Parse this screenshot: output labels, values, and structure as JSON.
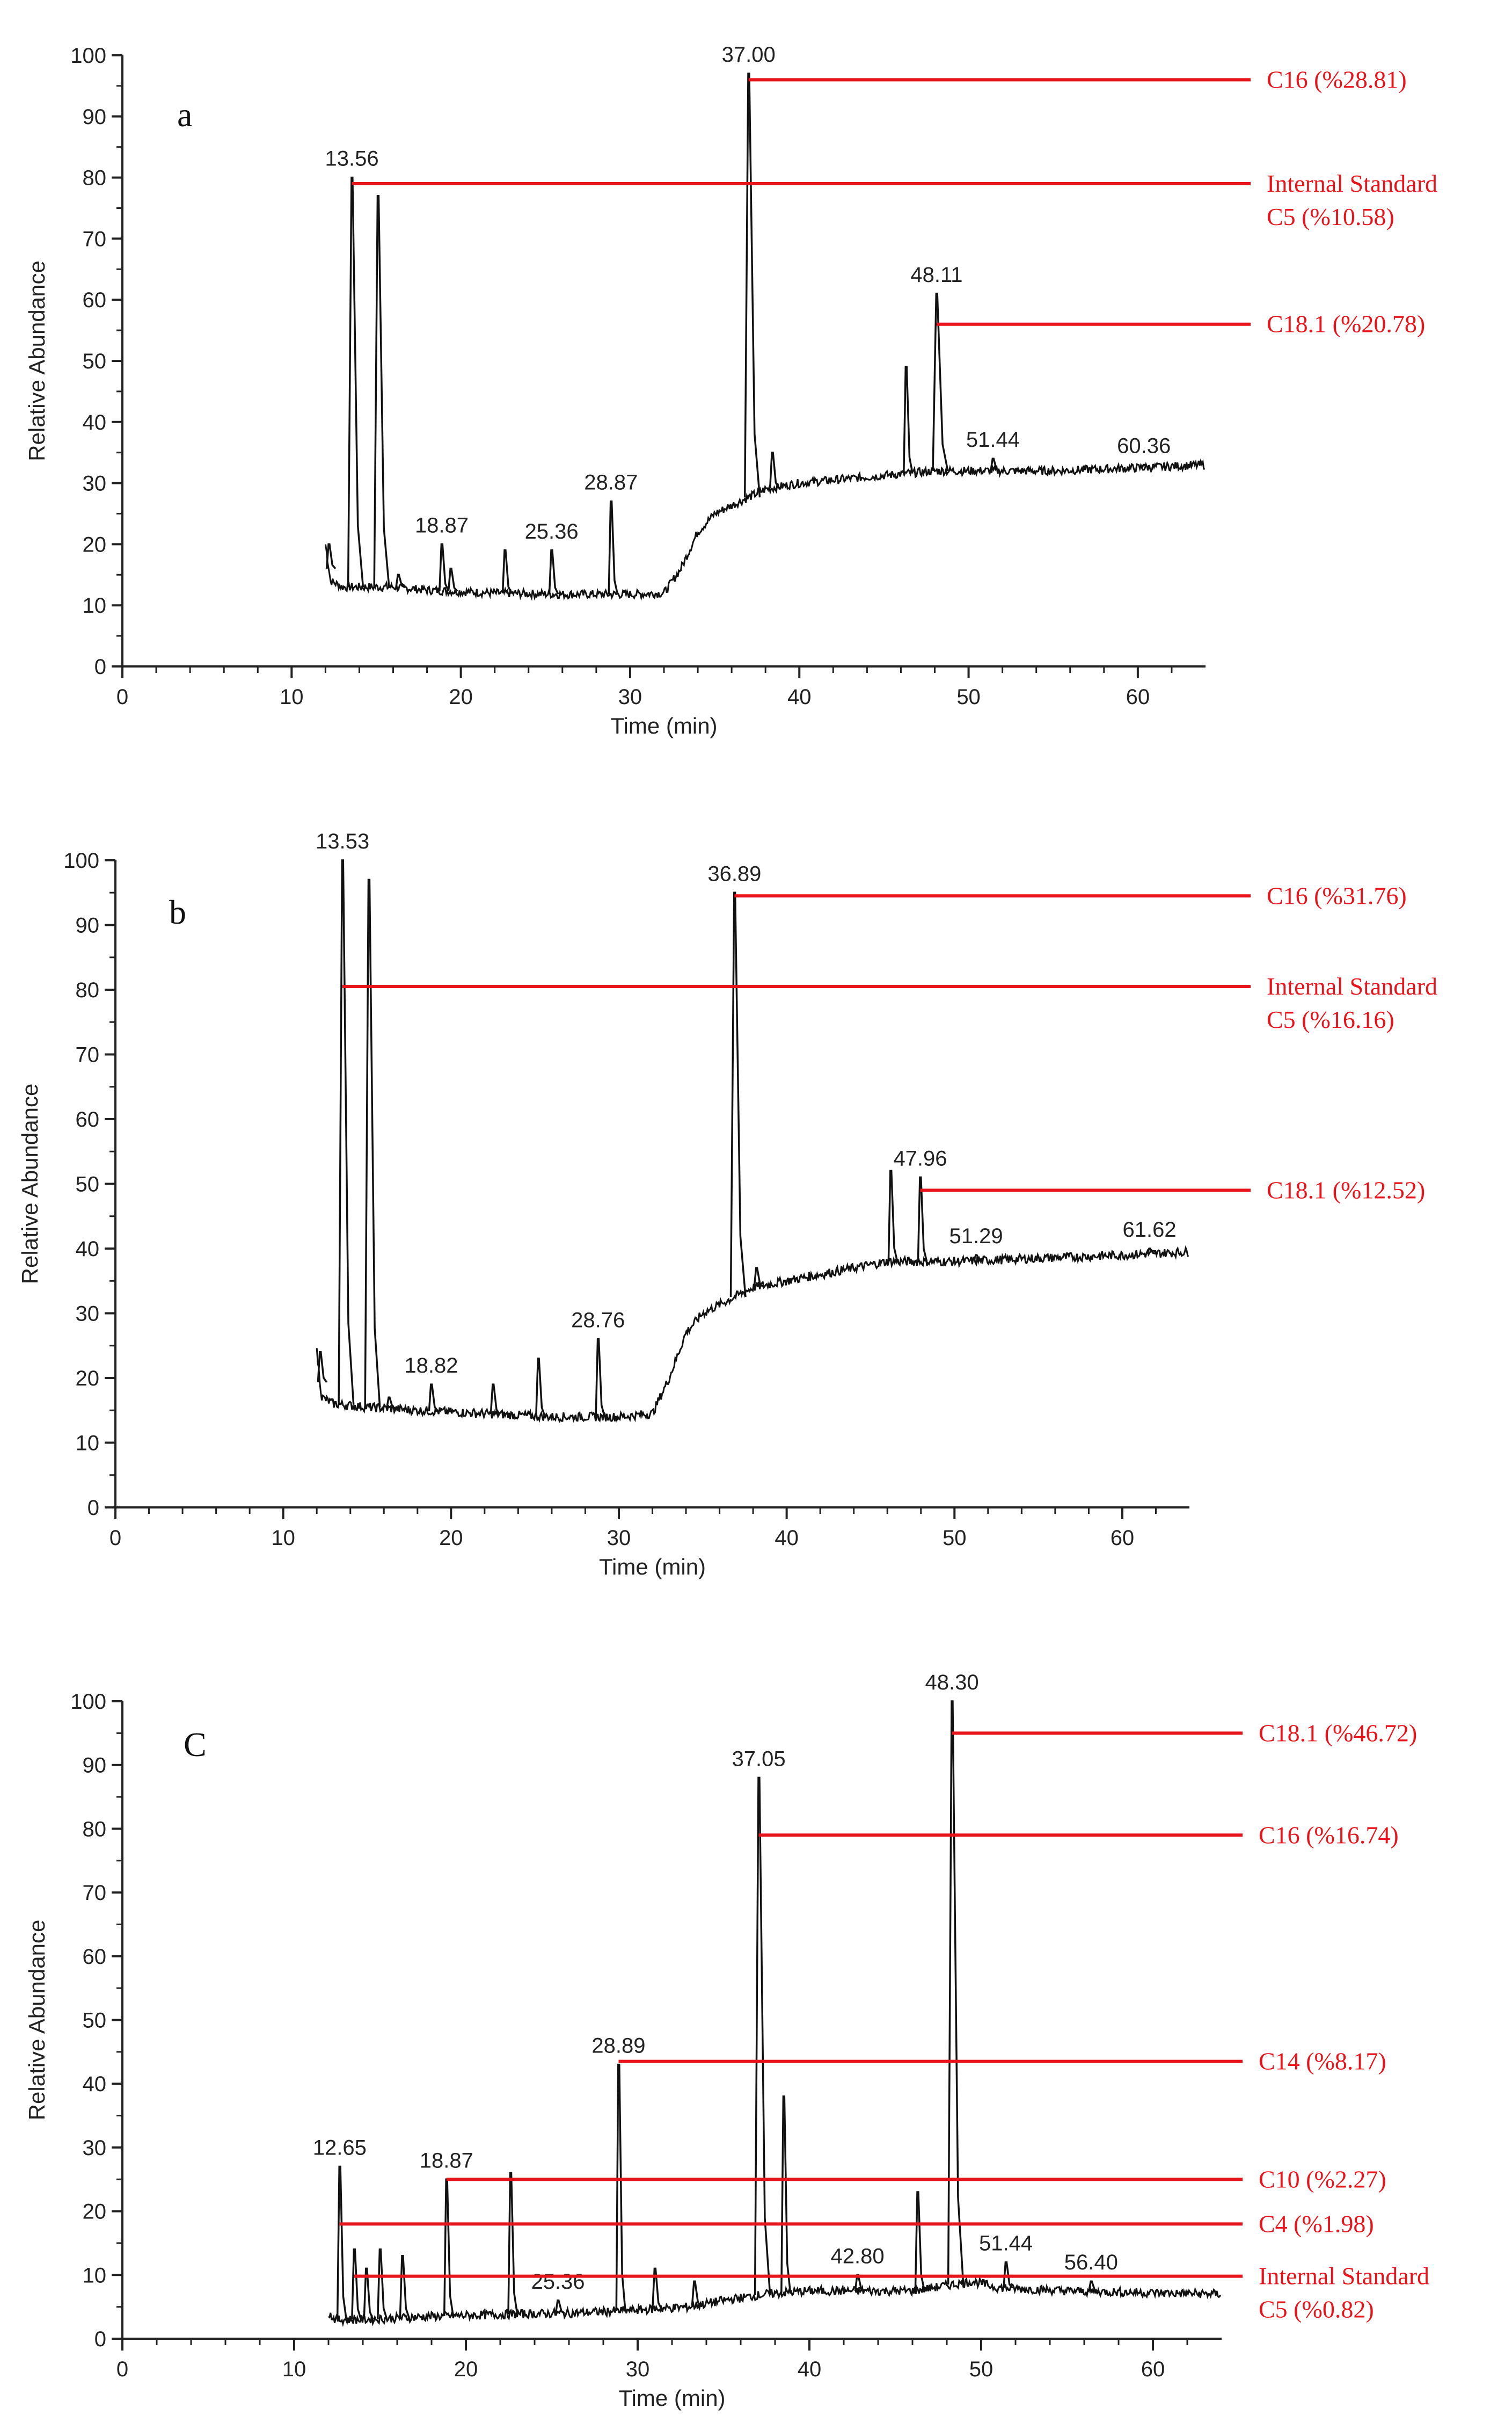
{
  "chart_data": [
    {
      "type": "line",
      "panel_label": "a",
      "xlabel": "Time (min)",
      "ylabel": "Relative Abundance",
      "xlim": [
        0,
        64
      ],
      "ylim": [
        0,
        100
      ],
      "xticks": [
        0,
        10,
        20,
        30,
        40,
        50,
        60
      ],
      "yticks": [
        0,
        10,
        20,
        30,
        40,
        50,
        60,
        70,
        80,
        90,
        100
      ],
      "baseline": [
        [
          12.0,
          20
        ],
        [
          12.3,
          14
        ],
        [
          13.0,
          13
        ],
        [
          14.5,
          13
        ],
        [
          16.0,
          13
        ],
        [
          18.0,
          12.5
        ],
        [
          22.0,
          12
        ],
        [
          26.0,
          11.8
        ],
        [
          30.0,
          11.8
        ],
        [
          32.0,
          12
        ],
        [
          33.0,
          16
        ],
        [
          34.0,
          22
        ],
        [
          35.0,
          25
        ],
        [
          36.5,
          27
        ],
        [
          38.0,
          29
        ],
        [
          40.0,
          30
        ],
        [
          44.0,
          31
        ],
        [
          46.0,
          31.5
        ],
        [
          48.0,
          32
        ],
        [
          50.0,
          32
        ],
        [
          55.0,
          32
        ],
        [
          60.0,
          32.5
        ],
        [
          64.0,
          33
        ]
      ],
      "peaks": [
        {
          "x": 12.2,
          "y": 20
        },
        {
          "x": 13.56,
          "y": 80
        },
        {
          "x": 15.1,
          "y": 77
        },
        {
          "x": 16.3,
          "y": 15
        },
        {
          "x": 18.87,
          "y": 20
        },
        {
          "x": 19.4,
          "y": 16
        },
        {
          "x": 22.6,
          "y": 19
        },
        {
          "x": 25.36,
          "y": 19
        },
        {
          "x": 28.87,
          "y": 27
        },
        {
          "x": 37.0,
          "y": 97
        },
        {
          "x": 38.4,
          "y": 35
        },
        {
          "x": 46.3,
          "y": 49
        },
        {
          "x": 48.11,
          "y": 61
        },
        {
          "x": 51.44,
          "y": 34
        },
        {
          "x": 60.36,
          "y": 33
        }
      ],
      "peak_labels": [
        {
          "x": 13.56,
          "y": 80,
          "text": "13.56"
        },
        {
          "x": 18.87,
          "y": 20,
          "text": "18.87"
        },
        {
          "x": 25.36,
          "y": 19,
          "text": "25.36"
        },
        {
          "x": 28.87,
          "y": 27,
          "text": "28.87"
        },
        {
          "x": 37.0,
          "y": 97,
          "text": "37.00"
        },
        {
          "x": 48.11,
          "y": 61,
          "text": "48.11"
        },
        {
          "x": 51.44,
          "y": 34,
          "text": "51.44"
        },
        {
          "x": 60.36,
          "y": 33,
          "text": "60.36"
        }
      ],
      "annotations": [
        {
          "x_start": 37.0,
          "y": 96,
          "lines": [
            "C16 (%28.81)"
          ]
        },
        {
          "x_start": 13.56,
          "y": 79,
          "lines": [
            "Internal Standard",
            "C5 (%10.58)"
          ]
        },
        {
          "x_start": 48.11,
          "y": 56,
          "lines": [
            "C18.1 (%20.78)"
          ]
        }
      ],
      "annotation_color": "#e8141c",
      "trace_color": "#111111"
    },
    {
      "type": "line",
      "panel_label": "b",
      "xlabel": "Time (min)",
      "ylabel": "Relative Abundance",
      "xlim": [
        0,
        64
      ],
      "ylim": [
        0,
        100
      ],
      "xticks": [
        0,
        10,
        20,
        30,
        40,
        50,
        60
      ],
      "yticks": [
        0,
        10,
        20,
        30,
        40,
        50,
        60,
        70,
        80,
        90,
        100
      ],
      "baseline": [
        [
          12.0,
          24
        ],
        [
          12.3,
          17
        ],
        [
          13.0,
          16
        ],
        [
          15.0,
          15.5
        ],
        [
          18.0,
          15
        ],
        [
          22.0,
          14.5
        ],
        [
          26.0,
          14
        ],
        [
          30.0,
          14
        ],
        [
          32.0,
          14.5
        ],
        [
          33.0,
          20
        ],
        [
          34.0,
          27
        ],
        [
          35.0,
          30
        ],
        [
          36.5,
          32
        ],
        [
          38.0,
          34
        ],
        [
          40.0,
          35
        ],
        [
          44.0,
          37
        ],
        [
          46.0,
          38
        ],
        [
          48.0,
          38
        ],
        [
          50.0,
          38
        ],
        [
          55.0,
          38.5
        ],
        [
          60.0,
          39
        ],
        [
          64.0,
          39.5
        ]
      ],
      "peaks": [
        {
          "x": 12.2,
          "y": 24
        },
        {
          "x": 13.53,
          "y": 100
        },
        {
          "x": 15.1,
          "y": 97
        },
        {
          "x": 16.3,
          "y": 17
        },
        {
          "x": 18.82,
          "y": 19
        },
        {
          "x": 22.5,
          "y": 19
        },
        {
          "x": 25.2,
          "y": 23
        },
        {
          "x": 28.76,
          "y": 26
        },
        {
          "x": 36.89,
          "y": 95
        },
        {
          "x": 38.2,
          "y": 37
        },
        {
          "x": 46.2,
          "y": 52
        },
        {
          "x": 47.96,
          "y": 51
        },
        {
          "x": 51.29,
          "y": 39
        },
        {
          "x": 61.62,
          "y": 40
        }
      ],
      "peak_labels": [
        {
          "x": 13.53,
          "y": 100,
          "text": "13.53"
        },
        {
          "x": 18.82,
          "y": 19,
          "text": "18.82"
        },
        {
          "x": 28.76,
          "y": 26,
          "text": "28.76"
        },
        {
          "x": 36.89,
          "y": 95,
          "text": "36.89"
        },
        {
          "x": 47.96,
          "y": 51,
          "text": "47.96"
        },
        {
          "x": 51.29,
          "y": 39,
          "text": "51.29"
        },
        {
          "x": 61.62,
          "y": 40,
          "text": "61.62"
        }
      ],
      "annotations": [
        {
          "x_start": 36.89,
          "y": 94.5,
          "lines": [
            "C16 (%31.76)"
          ]
        },
        {
          "x_start": 13.53,
          "y": 80.5,
          "lines": [
            "Internal Standard",
            "C5 (%16.16)"
          ]
        },
        {
          "x_start": 47.96,
          "y": 49,
          "lines": [
            "C18.1 (%12.52)"
          ]
        }
      ],
      "annotation_color": "#e8141c",
      "trace_color": "#111111"
    },
    {
      "type": "line",
      "panel_label": "C",
      "xlabel": "Time (min)",
      "ylabel": "Relative Abundance",
      "xlim": [
        0,
        64
      ],
      "ylim": [
        0,
        100
      ],
      "xticks": [
        0,
        10,
        20,
        30,
        40,
        50,
        60
      ],
      "yticks": [
        0,
        10,
        20,
        30,
        40,
        50,
        60,
        70,
        80,
        90,
        100
      ],
      "baseline": [
        [
          12.0,
          4
        ],
        [
          12.4,
          3
        ],
        [
          14.0,
          3
        ],
        [
          18.0,
          3.5
        ],
        [
          22.0,
          3.8
        ],
        [
          26.0,
          4
        ],
        [
          30.0,
          4.5
        ],
        [
          33.0,
          5
        ],
        [
          35.0,
          6
        ],
        [
          37.5,
          7
        ],
        [
          40.0,
          7.5
        ],
        [
          44.0,
          7.5
        ],
        [
          46.0,
          7.5
        ],
        [
          49.5,
          9
        ],
        [
          51.0,
          8
        ],
        [
          55.0,
          7.5
        ],
        [
          60.0,
          7.2
        ],
        [
          64.0,
          7
        ]
      ],
      "peaks": [
        {
          "x": 12.65,
          "y": 27
        },
        {
          "x": 13.5,
          "y": 14
        },
        {
          "x": 14.2,
          "y": 11
        },
        {
          "x": 15.0,
          "y": 14
        },
        {
          "x": 16.3,
          "y": 13
        },
        {
          "x": 18.87,
          "y": 25
        },
        {
          "x": 22.6,
          "y": 26
        },
        {
          "x": 25.36,
          "y": 6
        },
        {
          "x": 28.89,
          "y": 43
        },
        {
          "x": 31.0,
          "y": 11
        },
        {
          "x": 33.3,
          "y": 9
        },
        {
          "x": 37.05,
          "y": 88
        },
        {
          "x": 38.5,
          "y": 38
        },
        {
          "x": 42.8,
          "y": 10
        },
        {
          "x": 46.3,
          "y": 23
        },
        {
          "x": 48.3,
          "y": 100
        },
        {
          "x": 51.44,
          "y": 12
        },
        {
          "x": 56.4,
          "y": 9
        }
      ],
      "peak_labels": [
        {
          "x": 12.65,
          "y": 27,
          "text": "12.65"
        },
        {
          "x": 18.87,
          "y": 25,
          "text": "18.87"
        },
        {
          "x": 25.36,
          "y": 6,
          "text": "25.36"
        },
        {
          "x": 28.89,
          "y": 43,
          "text": "28.89"
        },
        {
          "x": 37.05,
          "y": 88,
          "text": "37.05"
        },
        {
          "x": 42.8,
          "y": 10,
          "text": "42.80"
        },
        {
          "x": 48.3,
          "y": 100,
          "text": "48.30"
        },
        {
          "x": 51.44,
          "y": 12,
          "text": "51.44"
        },
        {
          "x": 56.4,
          "y": 9,
          "text": "56.40"
        }
      ],
      "annotations": [
        {
          "x_start": 48.3,
          "y": 95,
          "lines": [
            "C18.1 (%46.72)"
          ]
        },
        {
          "x_start": 37.05,
          "y": 79,
          "lines": [
            "C16 (%16.74)"
          ]
        },
        {
          "x_start": 28.89,
          "y": 43.5,
          "lines": [
            "C14  (%8.17)"
          ]
        },
        {
          "x_start": 18.87,
          "y": 25,
          "lines": [
            "C10 (%2.27)"
          ]
        },
        {
          "x_start": 12.65,
          "y": 18,
          "lines": [
            "C4 (%1.98)"
          ]
        },
        {
          "x_start": 13.5,
          "y": 9.8,
          "lines": [
            "Internal Standard",
            "C5 (%0.82)"
          ]
        }
      ],
      "annotation_color": "#e8141c",
      "trace_color": "#111111"
    }
  ]
}
